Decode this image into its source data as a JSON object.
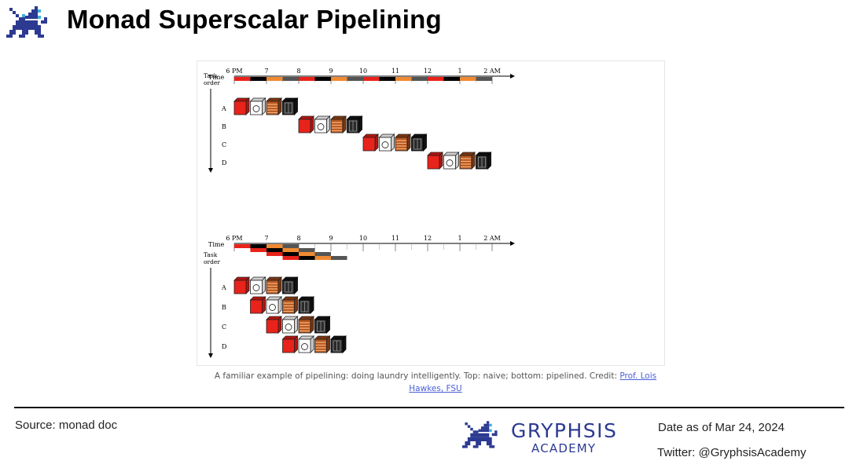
{
  "header": {
    "title": "Monad Superscalar Pipelining"
  },
  "diagram": {
    "time_label": "Time",
    "task_order_label": [
      "Task",
      "order"
    ],
    "hours": [
      "6 PM",
      "7",
      "8",
      "9",
      "10",
      "11",
      "12",
      "1",
      "2 AM"
    ],
    "stages": [
      "washer",
      "dryer",
      "folder",
      "storer"
    ],
    "colors": {
      "washer": "#e8231b",
      "dryer": "#ffffff",
      "folder": "#b8561e",
      "storer": "#2a2a2a",
      "bar_black": "#000000",
      "bar_orange": "#f08a32",
      "bar_red": "#e8231b",
      "bar_gray": "#555555"
    },
    "naive": {
      "tasks": [
        {
          "label": "A",
          "start_slot": 0
        },
        {
          "label": "B",
          "start_slot": 4
        },
        {
          "label": "C",
          "start_slot": 8
        },
        {
          "label": "D",
          "start_slot": 12
        }
      ]
    },
    "pipelined": {
      "tasks": [
        {
          "label": "A",
          "start_slot": 0
        },
        {
          "label": "B",
          "start_slot": 1
        },
        {
          "label": "C",
          "start_slot": 2
        },
        {
          "label": "D",
          "start_slot": 3
        }
      ]
    }
  },
  "caption": {
    "text": "A familiar example of pipelining: doing laundry intelligently. Top: naive; bottom: pipelined.  Credit: ",
    "link_text": "Prof. Lois Hawkes, FSU"
  },
  "footer": {
    "source": "Source: monad doc",
    "brand_name": "GRYPHSIS",
    "brand_sub": "ACADEMY",
    "date": "Date as of Mar 24, 2024",
    "twitter": "Twitter: @GryphsisAcademy"
  }
}
